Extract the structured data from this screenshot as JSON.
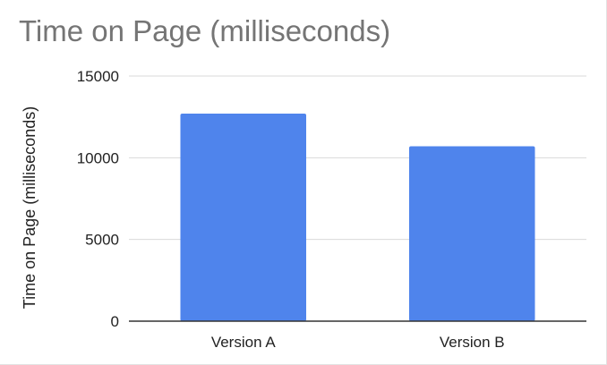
{
  "chart_data": {
    "type": "bar",
    "title": "Time on Page (milliseconds)",
    "xlabel": "",
    "ylabel": "Time on Page (milliseconds)",
    "categories": [
      "Version A",
      "Version B"
    ],
    "values": [
      12700,
      10700
    ],
    "ylim": [
      0,
      15000
    ],
    "yticks": [
      0,
      5000,
      10000,
      15000
    ],
    "ytick_labels": [
      "0",
      "5000",
      "10000",
      "15000"
    ],
    "grid": true,
    "legend": "none",
    "colors": {
      "bar": "#4f84ec",
      "grid": "#d9d9d9",
      "axis": "#333333"
    }
  }
}
